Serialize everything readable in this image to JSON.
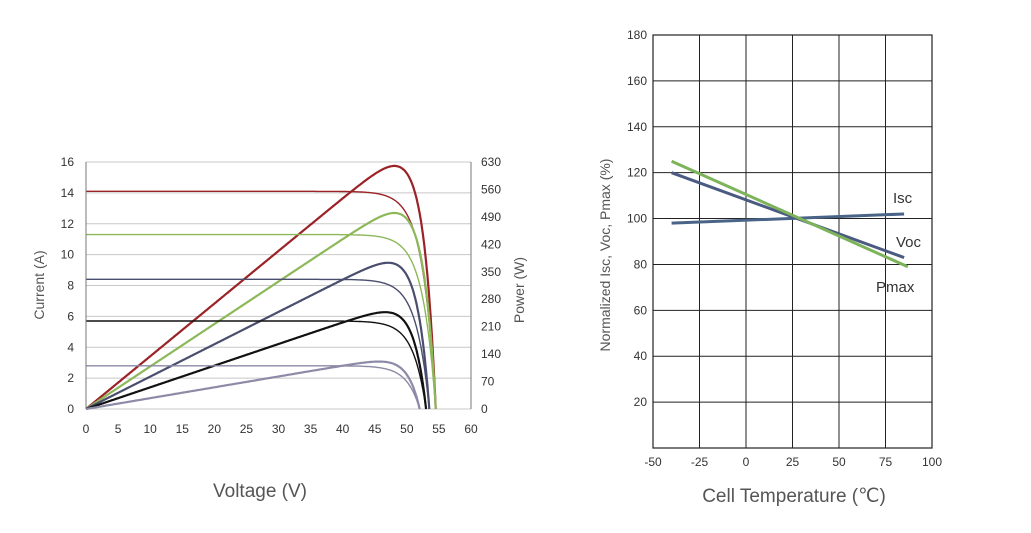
{
  "chart_data": [
    {
      "type": "line",
      "xlabel": "Voltage (V)",
      "ylabel": "Current (A)",
      "y2label": "Power (W)",
      "xlim": [
        0,
        60
      ],
      "ylim": [
        0,
        16
      ],
      "y2lim": [
        0,
        630
      ],
      "xticks": [
        "0",
        "5",
        "10",
        "15",
        "20",
        "25",
        "30",
        "35",
        "40",
        "45",
        "50",
        "55",
        "60"
      ],
      "yticks": [
        "0",
        "2",
        "4",
        "6",
        "8",
        "10",
        "12",
        "14",
        "16"
      ],
      "y2ticks": [
        "0",
        "70",
        "140",
        "210",
        "280",
        "350",
        "420",
        "490",
        "560",
        "630"
      ],
      "grid": "horizontal",
      "curves": [
        {
          "color": "#9b2226",
          "isc": 14.1,
          "vmp": 46,
          "imp": 13.5,
          "voc": 54.5,
          "pmax": 620
        },
        {
          "color": "#8db85a",
          "isc": 11.3,
          "vmp": 46,
          "imp": 10.9,
          "voc": 54.5,
          "pmax": 500
        },
        {
          "color": "#4a4e6e",
          "isc": 8.4,
          "vmp": 45,
          "imp": 8.2,
          "voc": 53.5,
          "pmax": 373
        },
        {
          "color": "#111111",
          "isc": 5.7,
          "vmp": 45,
          "imp": 5.5,
          "voc": 53.0,
          "pmax": 247
        },
        {
          "color": "#8c8aa6",
          "isc": 2.8,
          "vmp": 44,
          "imp": 2.7,
          "voc": 52.0,
          "pmax": 121
        }
      ]
    },
    {
      "type": "line",
      "xlabel": "Cell Temperature (℃)",
      "ylabel": "Normalized Isc, Voc, Pmax (%)",
      "xlim": [
        -50,
        100
      ],
      "ylim": [
        0,
        180
      ],
      "xticks": [
        "-50",
        "-25",
        "0",
        "25",
        "50",
        "75",
        "100"
      ],
      "yticks": [
        "20",
        "40",
        "60",
        "80",
        "100",
        "120",
        "140",
        "160",
        "180"
      ],
      "grid": "both",
      "series": [
        {
          "name": "Isc",
          "color": "#4a6488",
          "x": [
            -40,
            85
          ],
          "y": [
            98,
            102
          ]
        },
        {
          "name": "Voc",
          "color": "#4a5a80",
          "x": [
            -40,
            85
          ],
          "y": [
            120,
            83
          ]
        },
        {
          "name": "Pmax",
          "color": "#7db35a",
          "x": [
            -40,
            87
          ],
          "y": [
            125,
            79
          ]
        }
      ]
    }
  ]
}
